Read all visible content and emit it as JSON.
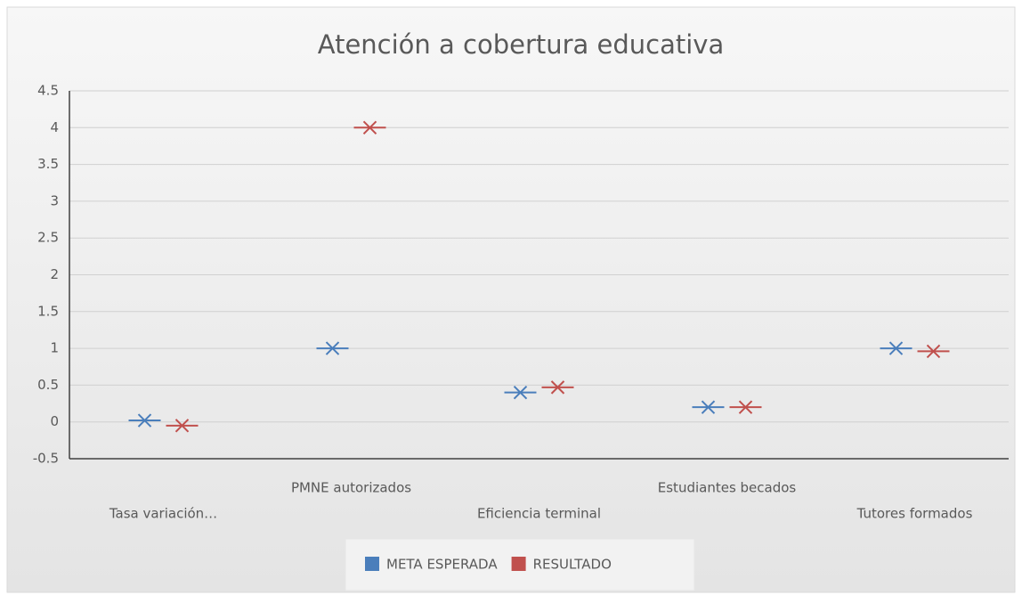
{
  "chart_data": {
    "type": "line",
    "marker": "x",
    "connect": false,
    "title": "Atención a cobertura educativa",
    "categories": [
      "Tasa variación…",
      "PMNE autorizados",
      "Eficiencia terminal",
      "Estudiantes becados",
      "Tutores formados"
    ],
    "series": [
      {
        "name": "META ESPERADA",
        "color": "#4a7ebb",
        "values": [
          0.02,
          1,
          0.4,
          0.2,
          1
        ]
      },
      {
        "name": "RESULTADO",
        "color": "#c0504d",
        "values": [
          -0.05,
          4,
          0.47,
          0.2,
          0.96
        ]
      }
    ],
    "ylim": [
      -0.5,
      4.5
    ],
    "yticks": [
      -0.5,
      0,
      0.5,
      1,
      1.5,
      2,
      2.5,
      3,
      3.5,
      4,
      4.5
    ],
    "grid": true,
    "legend": "bottom"
  }
}
